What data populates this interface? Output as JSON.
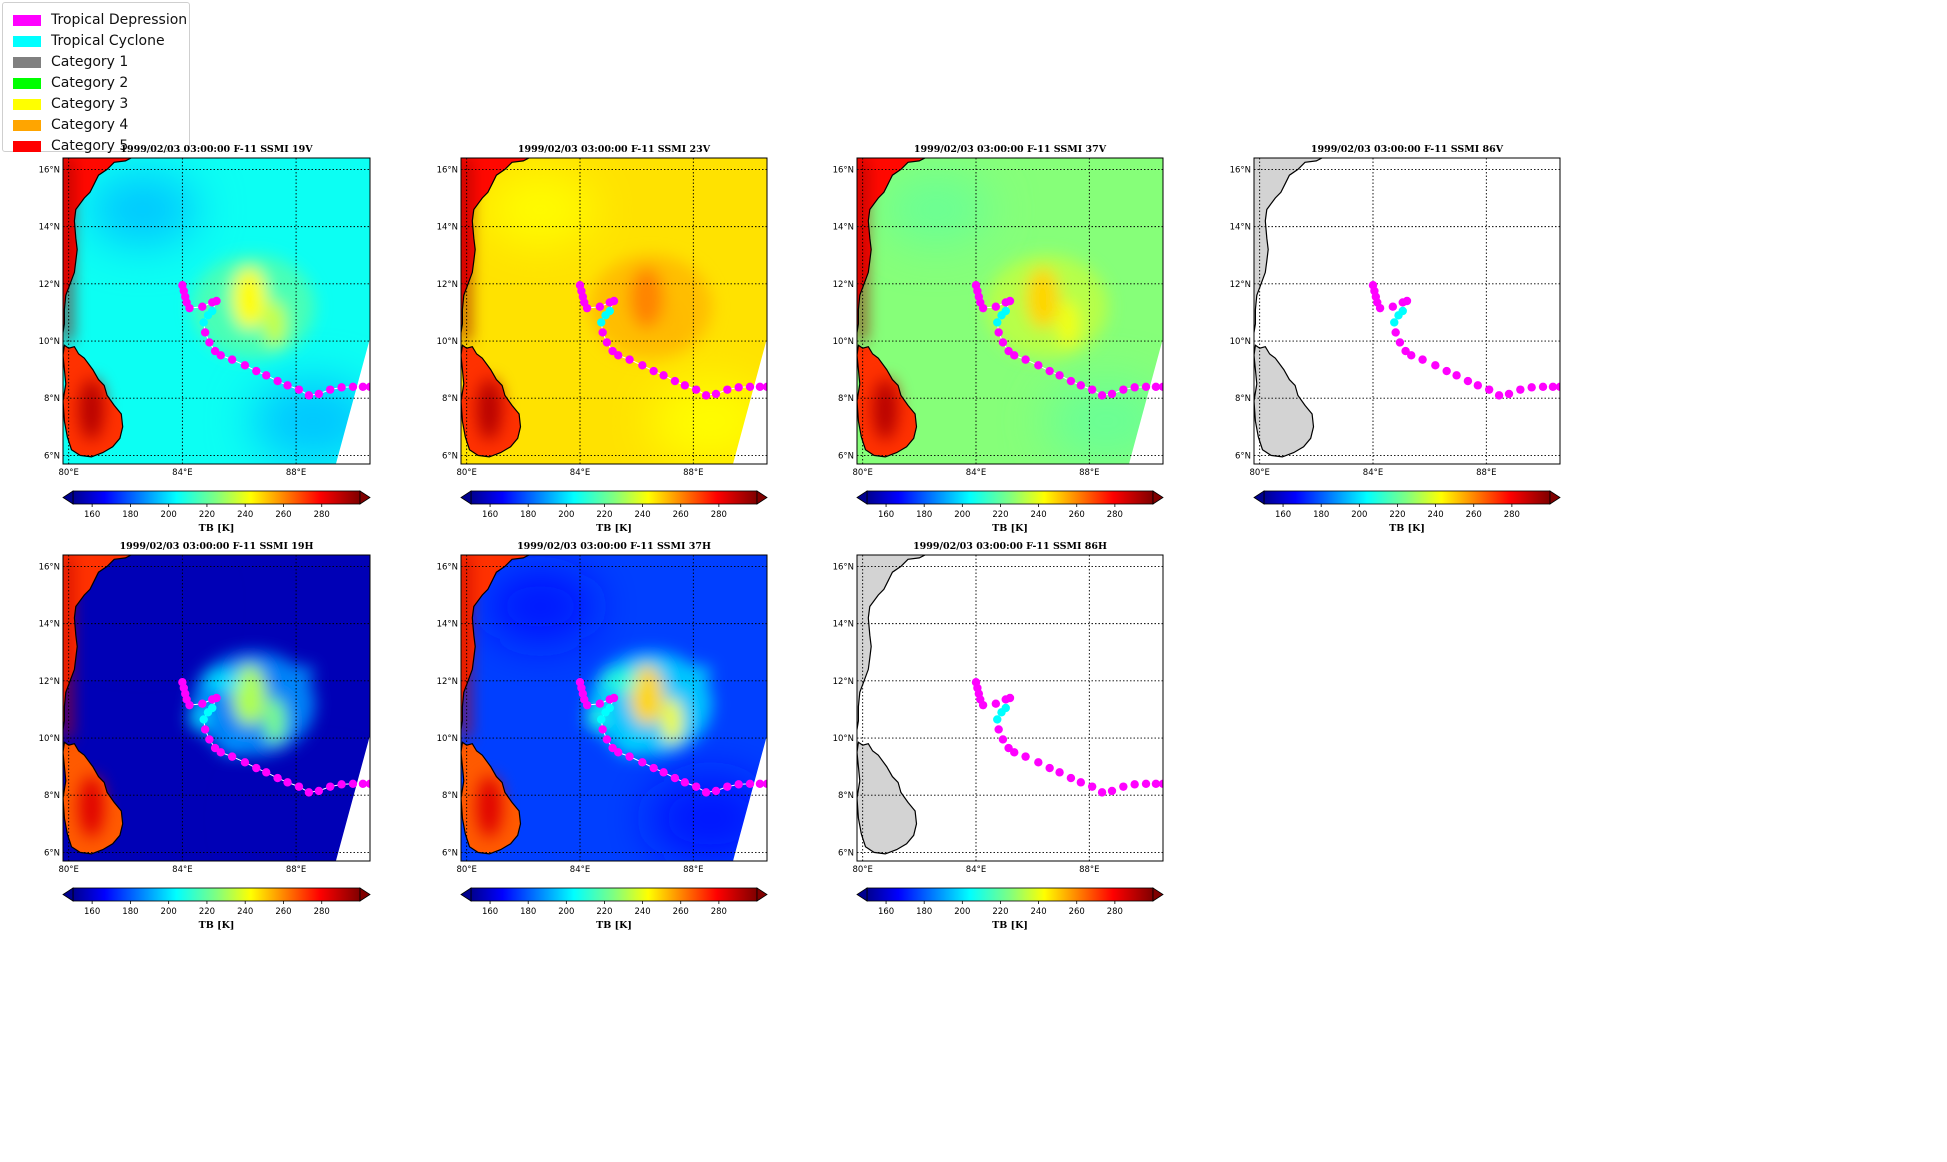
{
  "legend": [
    {
      "label": "Tropical Depression",
      "color": "#ff00ff"
    },
    {
      "label": "Tropical Cyclone",
      "color": "#00ffff"
    },
    {
      "label": "Category 1",
      "color": "#808080"
    },
    {
      "label": "Category 2",
      "color": "#00ff00"
    },
    {
      "label": "Category 3",
      "color": "#ffff00"
    },
    {
      "label": "Category 4",
      "color": "#ffa500"
    },
    {
      "label": "Category 5",
      "color": "#ff0000"
    }
  ],
  "panels": [
    {
      "title": "1999/02/03 03:00:00  F-11 SSMI 19V",
      "field": "v19"
    },
    {
      "title": "1999/02/03 03:00:00  F-11 SSMI 23V",
      "field": "v23"
    },
    {
      "title": "1999/02/03 03:00:00  F-11 SSMI 37V",
      "field": "v37"
    },
    {
      "title": "1999/02/03 03:00:00  F-11 SSMI 86V",
      "field": "none"
    },
    {
      "title": "1999/02/03 03:00:00  F-11 SSMI 19H",
      "field": "h19"
    },
    {
      "title": "1999/02/03 03:00:00  F-11 SSMI 37H",
      "field": "h37"
    },
    {
      "title": "1999/02/03 03:00:00  F-11 SSMI 86H",
      "field": "none"
    }
  ],
  "map": {
    "lon_range": [
      79.8,
      90.6
    ],
    "lat_range": [
      5.7,
      16.4
    ],
    "lon_ticks": [
      80,
      84,
      88
    ],
    "lon_tick_labels": [
      "80°E",
      "84°E",
      "88°E"
    ],
    "lat_ticks": [
      6,
      8,
      10,
      12,
      14,
      16
    ],
    "lat_tick_labels": [
      "6°N",
      "8°N",
      "10°N",
      "12°N",
      "14°N",
      "16°N"
    ]
  },
  "colorbar": {
    "label": "TB [K]",
    "range": [
      150,
      300
    ],
    "ticks": [
      160,
      180,
      200,
      220,
      240,
      260,
      280
    ],
    "colormap": "jet"
  },
  "track": {
    "points": [
      {
        "lon": 84.0,
        "lat": 11.95,
        "cat": "Tropical Depression"
      },
      {
        "lon": 84.05,
        "lat": 11.75,
        "cat": "Tropical Depression"
      },
      {
        "lon": 84.1,
        "lat": 11.55,
        "cat": "Tropical Depression"
      },
      {
        "lon": 84.15,
        "lat": 11.35,
        "cat": "Tropical Depression"
      },
      {
        "lon": 84.25,
        "lat": 11.15,
        "cat": "Tropical Depression"
      },
      {
        "lon": 84.7,
        "lat": 11.2,
        "cat": "Tropical Depression"
      },
      {
        "lon": 85.05,
        "lat": 11.35,
        "cat": "Tropical Depression"
      },
      {
        "lon": 85.2,
        "lat": 11.4,
        "cat": "Tropical Depression"
      },
      {
        "lon": 85.05,
        "lat": 11.05,
        "cat": "Tropical Cyclone"
      },
      {
        "lon": 84.9,
        "lat": 10.9,
        "cat": "Tropical Cyclone"
      },
      {
        "lon": 84.75,
        "lat": 10.65,
        "cat": "Tropical Cyclone"
      },
      {
        "lon": 84.8,
        "lat": 10.3,
        "cat": "Tropical Depression"
      },
      {
        "lon": 84.95,
        "lat": 9.95,
        "cat": "Tropical Depression"
      },
      {
        "lon": 85.15,
        "lat": 9.65,
        "cat": "Tropical Depression"
      },
      {
        "lon": 85.35,
        "lat": 9.5,
        "cat": "Tropical Depression"
      },
      {
        "lon": 85.75,
        "lat": 9.35,
        "cat": "Tropical Depression"
      },
      {
        "lon": 86.2,
        "lat": 9.15,
        "cat": "Tropical Depression"
      },
      {
        "lon": 86.6,
        "lat": 8.95,
        "cat": "Tropical Depression"
      },
      {
        "lon": 86.95,
        "lat": 8.8,
        "cat": "Tropical Depression"
      },
      {
        "lon": 87.35,
        "lat": 8.6,
        "cat": "Tropical Depression"
      },
      {
        "lon": 87.7,
        "lat": 8.45,
        "cat": "Tropical Depression"
      },
      {
        "lon": 88.1,
        "lat": 8.3,
        "cat": "Tropical Depression"
      },
      {
        "lon": 88.45,
        "lat": 8.1,
        "cat": "Tropical Depression"
      },
      {
        "lon": 88.8,
        "lat": 8.15,
        "cat": "Tropical Depression"
      },
      {
        "lon": 89.2,
        "lat": 8.3,
        "cat": "Tropical Depression"
      },
      {
        "lon": 89.6,
        "lat": 8.38,
        "cat": "Tropical Depression"
      },
      {
        "lon": 90.0,
        "lat": 8.4,
        "cat": "Tropical Depression"
      },
      {
        "lon": 90.35,
        "lat": 8.4,
        "cat": "Tropical Depression"
      },
      {
        "lon": 90.6,
        "lat": 8.4,
        "cat": "Tropical Depression"
      }
    ]
  }
}
